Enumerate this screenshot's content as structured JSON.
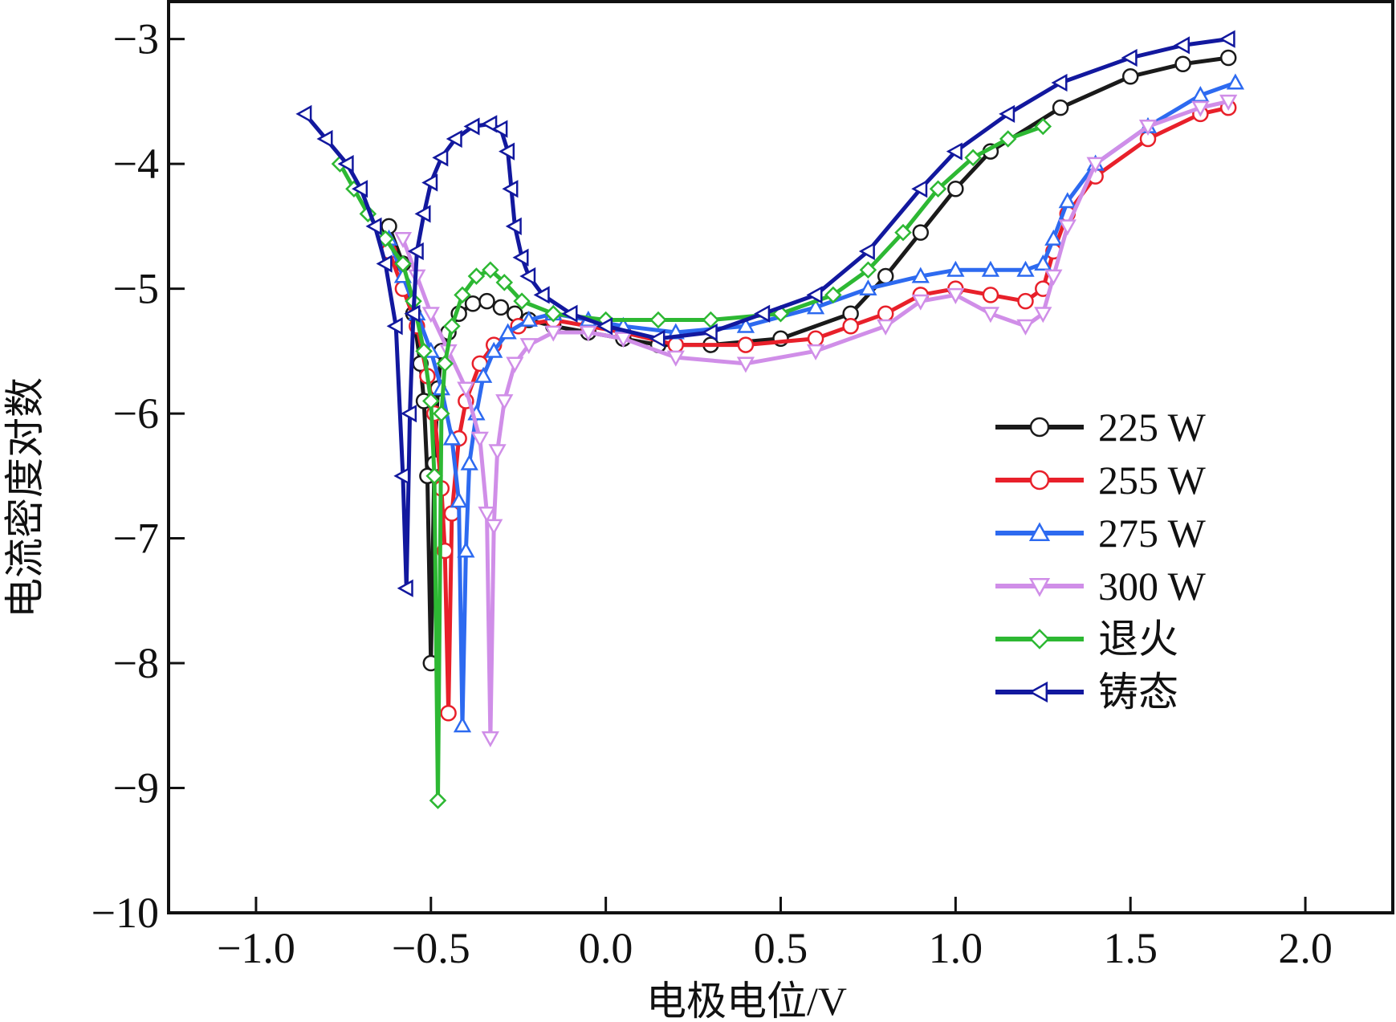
{
  "chart_data": {
    "type": "line",
    "title": "",
    "xlabel": "电极电位/V",
    "ylabel": "电流密度对数",
    "xlim": [
      -1.25,
      2.25
    ],
    "ylim": [
      -10,
      -2.7
    ],
    "xticks": [
      -1.0,
      -0.5,
      0.0,
      0.5,
      1.0,
      1.5,
      2.0
    ],
    "xtick_labels": [
      "−1.0",
      "−0.5",
      "0.0",
      "0.5",
      "1.0",
      "1.5",
      "2.0"
    ],
    "yticks": [
      -3,
      -4,
      -5,
      -6,
      -7,
      -8,
      -9,
      -10
    ],
    "ytick_labels": [
      "−3",
      "−4",
      "−5",
      "−6",
      "−7",
      "−8",
      "−9",
      "−10"
    ],
    "grid": false,
    "legend_position": "right",
    "series": [
      {
        "name": "225 W",
        "color": "#1a1a1a",
        "marker": "circle",
        "x": [
          -0.62,
          -0.58,
          -0.55,
          -0.53,
          -0.52,
          -0.51,
          -0.5,
          -0.49,
          -0.48,
          -0.47,
          -0.45,
          -0.42,
          -0.38,
          -0.34,
          -0.3,
          -0.26,
          -0.22,
          -0.15,
          -0.05,
          0.05,
          0.15,
          0.3,
          0.5,
          0.7,
          0.8,
          0.9,
          1.0,
          1.1,
          1.3,
          1.5,
          1.65,
          1.78
        ],
        "y": [
          -4.5,
          -4.8,
          -5.2,
          -5.6,
          -5.9,
          -6.5,
          -8.0,
          -6.4,
          -5.8,
          -5.5,
          -5.35,
          -5.2,
          -5.12,
          -5.1,
          -5.15,
          -5.2,
          -5.25,
          -5.3,
          -5.35,
          -5.4,
          -5.45,
          -5.45,
          -5.4,
          -5.2,
          -4.9,
          -4.55,
          -4.2,
          -3.9,
          -3.55,
          -3.3,
          -3.2,
          -3.15
        ]
      },
      {
        "name": "255 W",
        "color": "#e8202a",
        "marker": "circle",
        "x": [
          -0.62,
          -0.58,
          -0.54,
          -0.51,
          -0.49,
          -0.47,
          -0.46,
          -0.45,
          -0.44,
          -0.42,
          -0.4,
          -0.36,
          -0.32,
          -0.25,
          -0.15,
          -0.05,
          0.05,
          0.2,
          0.4,
          0.6,
          0.7,
          0.8,
          0.9,
          1.0,
          1.1,
          1.2,
          1.25,
          1.28,
          1.32,
          1.4,
          1.55,
          1.7,
          1.78
        ],
        "y": [
          -4.7,
          -5.0,
          -5.3,
          -5.7,
          -6.0,
          -6.6,
          -7.1,
          -8.4,
          -6.8,
          -6.2,
          -5.9,
          -5.6,
          -5.45,
          -5.3,
          -5.25,
          -5.3,
          -5.35,
          -5.45,
          -5.45,
          -5.4,
          -5.3,
          -5.2,
          -5.05,
          -5.0,
          -5.05,
          -5.1,
          -5.0,
          -4.7,
          -4.4,
          -4.1,
          -3.8,
          -3.6,
          -3.55
        ]
      },
      {
        "name": "275 W",
        "color": "#2d6af0",
        "marker": "triangle-up",
        "x": [
          -0.62,
          -0.58,
          -0.54,
          -0.5,
          -0.47,
          -0.44,
          -0.42,
          -0.41,
          -0.4,
          -0.39,
          -0.37,
          -0.35,
          -0.32,
          -0.28,
          -0.22,
          -0.15,
          -0.05,
          0.05,
          0.2,
          0.4,
          0.6,
          0.75,
          0.9,
          1.0,
          1.1,
          1.2,
          1.25,
          1.28,
          1.32,
          1.4,
          1.55,
          1.7,
          1.8
        ],
        "y": [
          -4.6,
          -4.9,
          -5.2,
          -5.5,
          -5.8,
          -6.2,
          -6.7,
          -8.5,
          -7.1,
          -6.4,
          -6.0,
          -5.7,
          -5.5,
          -5.35,
          -5.25,
          -5.2,
          -5.25,
          -5.3,
          -5.35,
          -5.3,
          -5.15,
          -5.0,
          -4.9,
          -4.85,
          -4.85,
          -4.85,
          -4.8,
          -4.6,
          -4.3,
          -4.0,
          -3.7,
          -3.45,
          -3.35
        ]
      },
      {
        "name": "300 W",
        "color": "#d08ee8",
        "marker": "triangle-down",
        "x": [
          -0.58,
          -0.54,
          -0.5,
          -0.45,
          -0.4,
          -0.36,
          -0.34,
          -0.33,
          -0.32,
          -0.31,
          -0.29,
          -0.26,
          -0.22,
          -0.15,
          -0.05,
          0.05,
          0.2,
          0.4,
          0.6,
          0.8,
          0.9,
          1.0,
          1.1,
          1.2,
          1.25,
          1.28,
          1.32,
          1.4,
          1.55,
          1.7,
          1.78
        ],
        "y": [
          -4.6,
          -4.9,
          -5.2,
          -5.5,
          -5.8,
          -6.2,
          -6.8,
          -8.6,
          -6.9,
          -6.3,
          -5.9,
          -5.6,
          -5.45,
          -5.35,
          -5.35,
          -5.4,
          -5.55,
          -5.6,
          -5.5,
          -5.3,
          -5.1,
          -5.05,
          -5.2,
          -5.3,
          -5.2,
          -4.9,
          -4.5,
          -4.0,
          -3.7,
          -3.55,
          -3.5
        ]
      },
      {
        "name": "退火",
        "color": "#2db833",
        "marker": "diamond",
        "x": [
          -0.76,
          -0.72,
          -0.68,
          -0.63,
          -0.58,
          -0.55,
          -0.52,
          -0.5,
          -0.49,
          -0.48,
          -0.47,
          -0.46,
          -0.44,
          -0.41,
          -0.37,
          -0.33,
          -0.29,
          -0.24,
          -0.15,
          0.0,
          0.15,
          0.3,
          0.5,
          0.65,
          0.75,
          0.85,
          0.95,
          1.05,
          1.15,
          1.25
        ],
        "y": [
          -4.0,
          -4.2,
          -4.4,
          -4.6,
          -4.8,
          -5.1,
          -5.5,
          -5.9,
          -6.5,
          -9.1,
          -6.0,
          -5.6,
          -5.3,
          -5.05,
          -4.9,
          -4.85,
          -4.95,
          -5.1,
          -5.2,
          -5.25,
          -5.25,
          -5.25,
          -5.2,
          -5.05,
          -4.85,
          -4.55,
          -4.2,
          -3.95,
          -3.8,
          -3.7
        ]
      },
      {
        "name": "铸态",
        "color": "#12189e",
        "marker": "triangle-left",
        "x": [
          -0.86,
          -0.8,
          -0.74,
          -0.7,
          -0.66,
          -0.63,
          -0.6,
          -0.58,
          -0.57,
          -0.56,
          -0.55,
          -0.54,
          -0.52,
          -0.5,
          -0.47,
          -0.43,
          -0.38,
          -0.33,
          -0.3,
          -0.28,
          -0.27,
          -0.26,
          -0.24,
          -0.22,
          -0.18,
          -0.1,
          0.0,
          0.15,
          0.3,
          0.45,
          0.6,
          0.75,
          0.9,
          1.0,
          1.15,
          1.3,
          1.5,
          1.65,
          1.78
        ],
        "y": [
          -3.6,
          -3.8,
          -4.0,
          -4.2,
          -4.5,
          -4.8,
          -5.3,
          -6.5,
          -7.4,
          -6.0,
          -5.2,
          -4.7,
          -4.4,
          -4.15,
          -3.95,
          -3.8,
          -3.7,
          -3.68,
          -3.72,
          -3.9,
          -4.2,
          -4.5,
          -4.75,
          -4.9,
          -5.05,
          -5.2,
          -5.3,
          -5.4,
          -5.35,
          -5.2,
          -5.05,
          -4.7,
          -4.2,
          -3.9,
          -3.6,
          -3.35,
          -3.15,
          -3.05,
          -3.0
        ]
      }
    ]
  }
}
